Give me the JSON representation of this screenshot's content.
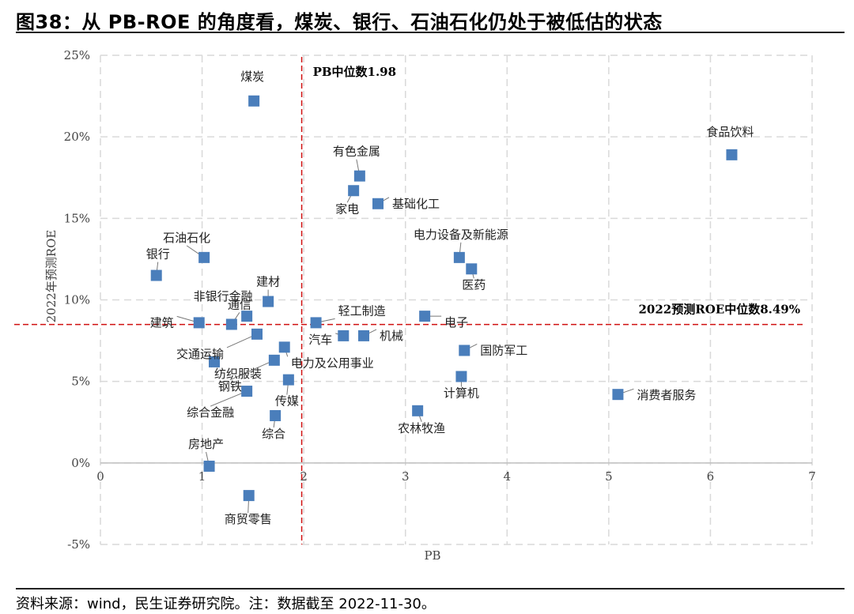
{
  "figure": {
    "title": "图38：从 PB-ROE 的角度看，煤炭、银行、石油石化仍处于被低估的状态",
    "source": "资料来源：wind，民生证券研究院。注：数据截至 2022-11-30。"
  },
  "chart_data": {
    "type": "scatter",
    "xlabel": "PB",
    "ylabel": "2022年预测ROE",
    "xlim": [
      0,
      7
    ],
    "ylim": [
      -5,
      25
    ],
    "x_ticks": [
      "0",
      "1",
      "2",
      "3",
      "4",
      "5",
      "6",
      "7"
    ],
    "y_ticks": [
      "-5%",
      "0%",
      "5%",
      "10%",
      "15%",
      "20%",
      "25%"
    ],
    "grid": true,
    "point_color": "#4a7ebb",
    "reference_lines": {
      "pb_median": {
        "value": 1.98,
        "label": "PB中位数1.98",
        "color": "#d01010"
      },
      "roe_median": {
        "value": 8.49,
        "label": "2022预测ROE中位数8.49%",
        "color": "#d01010"
      }
    },
    "points": [
      {
        "name": "煤炭",
        "x": 1.51,
        "y": 22.2
      },
      {
        "name": "食品饮料",
        "x": 6.21,
        "y": 18.9
      },
      {
        "name": "有色金属",
        "x": 2.55,
        "y": 17.6
      },
      {
        "name": "家电",
        "x": 2.49,
        "y": 16.7
      },
      {
        "name": "基础化工",
        "x": 2.73,
        "y": 15.9
      },
      {
        "name": "石油石化",
        "x": 1.02,
        "y": 12.6
      },
      {
        "name": "银行",
        "x": 0.55,
        "y": 11.5
      },
      {
        "name": "电力设备及新能源",
        "x": 3.53,
        "y": 12.6
      },
      {
        "name": "医药",
        "x": 3.65,
        "y": 11.9
      },
      {
        "name": "建材",
        "x": 1.65,
        "y": 9.9
      },
      {
        "name": "非银行金融",
        "x": 1.44,
        "y": 9.0
      },
      {
        "name": "通信",
        "x": 1.29,
        "y": 8.5
      },
      {
        "name": "建筑",
        "x": 0.97,
        "y": 8.6
      },
      {
        "name": "交通运输",
        "x": 1.54,
        "y": 7.9
      },
      {
        "name": "轻工制造",
        "x": 2.12,
        "y": 8.6
      },
      {
        "name": "电子",
        "x": 3.19,
        "y": 9.0
      },
      {
        "name": "汽车",
        "x": 2.39,
        "y": 7.8
      },
      {
        "name": "机械",
        "x": 2.59,
        "y": 7.8
      },
      {
        "name": "电力及公用事业",
        "x": 1.81,
        "y": 7.1
      },
      {
        "name": "国防军工",
        "x": 3.58,
        "y": 6.9
      },
      {
        "name": "纺织服装",
        "x": 1.12,
        "y": 6.2
      },
      {
        "name": "钢铁",
        "x": 1.71,
        "y": 6.3
      },
      {
        "name": "传媒",
        "x": 1.85,
        "y": 5.1
      },
      {
        "name": "计算机",
        "x": 3.55,
        "y": 5.3
      },
      {
        "name": "综合金融",
        "x": 1.44,
        "y": 4.4
      },
      {
        "name": "消费者服务",
        "x": 5.09,
        "y": 4.2
      },
      {
        "name": "农林牧渔",
        "x": 3.12,
        "y": 3.2
      },
      {
        "name": "综合",
        "x": 1.72,
        "y": 2.9
      },
      {
        "name": "房地产",
        "x": 1.07,
        "y": -0.2
      },
      {
        "name": "商贸零售",
        "x": 1.46,
        "y": -2.0
      }
    ]
  }
}
